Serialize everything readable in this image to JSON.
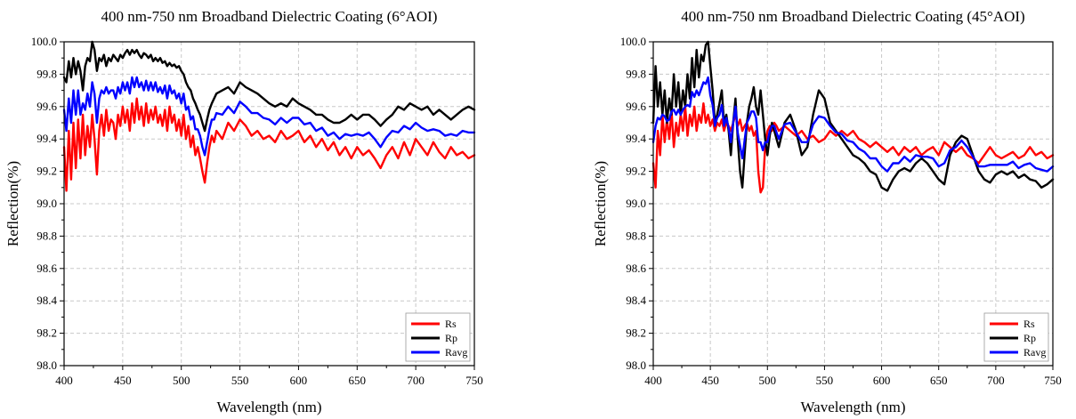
{
  "chart_data": [
    {
      "type": "line",
      "title": "400 nm-750 nm Broadband Dielectric Coating (6°AOI)",
      "xlabel": "Wavelength (nm)",
      "ylabel": "Reflection(%)",
      "xlim": [
        400,
        750
      ],
      "ylim": [
        98.0,
        100.0
      ],
      "xticks": [
        400,
        450,
        500,
        550,
        600,
        650,
        700,
        750
      ],
      "yticks": [
        "98.0",
        "98.2",
        "98.4",
        "98.6",
        "98.8",
        "99.0",
        "99.2",
        "99.4",
        "99.6",
        "99.8",
        "100.0"
      ],
      "grid": true,
      "legend_position": "bottom-right",
      "x": [
        400,
        402,
        404,
        406,
        408,
        410,
        412,
        414,
        416,
        418,
        420,
        422,
        424,
        426,
        428,
        430,
        432,
        434,
        436,
        438,
        440,
        442,
        444,
        446,
        448,
        450,
        452,
        454,
        456,
        458,
        460,
        462,
        464,
        466,
        468,
        470,
        472,
        474,
        476,
        478,
        480,
        482,
        484,
        486,
        488,
        490,
        492,
        494,
        496,
        498,
        500,
        502,
        504,
        506,
        508,
        510,
        512,
        514,
        516,
        518,
        520,
        522,
        524,
        526,
        528,
        530,
        535,
        540,
        545,
        550,
        555,
        560,
        565,
        570,
        575,
        580,
        585,
        590,
        595,
        600,
        605,
        610,
        615,
        620,
        625,
        630,
        635,
        640,
        645,
        650,
        655,
        660,
        665,
        670,
        675,
        680,
        685,
        690,
        695,
        700,
        705,
        710,
        715,
        720,
        725,
        730,
        735,
        740,
        745,
        750
      ],
      "series": [
        {
          "name": "Rs",
          "color": "#ff0000",
          "values": [
            99.35,
            99.08,
            99.45,
            99.15,
            99.5,
            99.22,
            99.52,
            99.28,
            99.55,
            99.3,
            99.48,
            99.35,
            99.55,
            99.4,
            99.18,
            99.45,
            99.55,
            99.42,
            99.58,
            99.45,
            99.52,
            99.5,
            99.4,
            99.55,
            99.48,
            99.6,
            99.5,
            99.58,
            99.45,
            99.62,
            99.5,
            99.65,
            99.52,
            99.6,
            99.48,
            99.62,
            99.5,
            99.58,
            99.52,
            99.6,
            99.5,
            99.55,
            99.48,
            99.58,
            99.45,
            99.6,
            99.5,
            99.55,
            99.45,
            99.52,
            99.42,
            99.55,
            99.4,
            99.48,
            99.35,
            99.42,
            99.3,
            99.35,
            99.28,
            99.2,
            99.13,
            99.25,
            99.35,
            99.42,
            99.38,
            99.45,
            99.4,
            99.5,
            99.45,
            99.52,
            99.48,
            99.42,
            99.45,
            99.4,
            99.42,
            99.38,
            99.45,
            99.4,
            99.42,
            99.45,
            99.38,
            99.42,
            99.35,
            99.4,
            99.33,
            99.38,
            99.3,
            99.35,
            99.28,
            99.35,
            99.3,
            99.33,
            99.28,
            99.22,
            99.3,
            99.35,
            99.28,
            99.38,
            99.3,
            99.4,
            99.35,
            99.3,
            99.38,
            99.32,
            99.28,
            99.35,
            99.3,
            99.32,
            99.28,
            99.3
          ]
        },
        {
          "name": "Rp",
          "color": "#000000",
          "values": [
            99.78,
            99.75,
            99.88,
            99.78,
            99.9,
            99.8,
            99.88,
            99.82,
            99.7,
            99.85,
            99.9,
            99.88,
            100.0,
            99.95,
            99.82,
            99.9,
            99.88,
            99.92,
            99.85,
            99.9,
            99.88,
            99.92,
            99.9,
            99.88,
            99.92,
            99.9,
            99.93,
            99.95,
            99.92,
            99.95,
            99.93,
            99.95,
            99.92,
            99.9,
            99.93,
            99.92,
            99.9,
            99.92,
            99.88,
            99.9,
            99.88,
            99.9,
            99.87,
            99.88,
            99.85,
            99.87,
            99.85,
            99.86,
            99.84,
            99.85,
            99.82,
            99.8,
            99.75,
            99.72,
            99.7,
            99.65,
            99.62,
            99.58,
            99.55,
            99.5,
            99.45,
            99.52,
            99.58,
            99.62,
            99.65,
            99.68,
            99.7,
            99.72,
            99.68,
            99.75,
            99.72,
            99.7,
            99.68,
            99.65,
            99.62,
            99.6,
            99.62,
            99.6,
            99.65,
            99.62,
            99.6,
            99.58,
            99.55,
            99.55,
            99.52,
            99.5,
            99.5,
            99.52,
            99.55,
            99.52,
            99.55,
            99.55,
            99.52,
            99.48,
            99.52,
            99.55,
            99.6,
            99.58,
            99.62,
            99.6,
            99.58,
            99.6,
            99.55,
            99.58,
            99.55,
            99.52,
            99.55,
            99.58,
            99.6,
            99.58
          ]
        },
        {
          "name": "Ravg",
          "color": "#0000ff",
          "values": [
            99.58,
            99.45,
            99.65,
            99.5,
            99.7,
            99.55,
            99.7,
            99.55,
            99.62,
            99.58,
            99.68,
            99.6,
            99.75,
            99.68,
            99.5,
            99.65,
            99.7,
            99.68,
            99.72,
            99.68,
            99.7,
            99.7,
            99.65,
            99.72,
            99.68,
            99.75,
            99.7,
            99.75,
            99.68,
            99.78,
            99.72,
            99.78,
            99.72,
            99.75,
            99.7,
            99.76,
            99.7,
            99.75,
            99.7,
            99.75,
            99.69,
            99.72,
            99.68,
            99.73,
            99.65,
            99.73,
            99.68,
            99.7,
            99.65,
            99.68,
            99.62,
            99.68,
            99.58,
            99.6,
            99.52,
            99.54,
            99.46,
            99.46,
            99.42,
            99.35,
            99.3,
            99.38,
            99.46,
            99.52,
            99.52,
            99.56,
            99.55,
            99.6,
            99.56,
            99.63,
            99.6,
            99.56,
            99.56,
            99.53,
            99.52,
            99.49,
            99.53,
            99.5,
            99.53,
            99.53,
            99.49,
            99.5,
            99.45,
            99.47,
            99.42,
            99.44,
            99.4,
            99.43,
            99.42,
            99.43,
            99.42,
            99.44,
            99.4,
            99.35,
            99.41,
            99.45,
            99.44,
            99.48,
            99.46,
            99.5,
            99.47,
            99.45,
            99.46,
            99.45,
            99.42,
            99.43,
            99.42,
            99.45,
            99.44,
            99.44
          ]
        }
      ]
    },
    {
      "type": "line",
      "title": "400 nm-750 nm Broadband Dielectric Coating (45°AOI)",
      "xlabel": "Wavelength (nm)",
      "ylabel": "Reflection(%)",
      "xlim": [
        400,
        750
      ],
      "ylim": [
        98.0,
        100.0
      ],
      "xticks": [
        400,
        450,
        500,
        550,
        600,
        650,
        700,
        750
      ],
      "yticks": [
        "98.0",
        "98.2",
        "98.4",
        "98.6",
        "98.8",
        "99.0",
        "99.2",
        "99.4",
        "99.6",
        "99.8",
        "100.0"
      ],
      "grid": true,
      "legend_position": "bottom-right",
      "x": [
        400,
        402,
        404,
        406,
        408,
        410,
        412,
        414,
        416,
        418,
        420,
        422,
        424,
        426,
        428,
        430,
        432,
        434,
        436,
        438,
        440,
        442,
        444,
        446,
        448,
        450,
        452,
        454,
        456,
        458,
        460,
        462,
        464,
        466,
        468,
        470,
        472,
        474,
        476,
        478,
        480,
        482,
        484,
        486,
        488,
        490,
        492,
        494,
        496,
        498,
        500,
        502,
        504,
        506,
        508,
        510,
        515,
        520,
        525,
        530,
        535,
        540,
        545,
        550,
        555,
        560,
        565,
        570,
        575,
        580,
        585,
        590,
        595,
        600,
        605,
        610,
        615,
        620,
        625,
        630,
        635,
        640,
        645,
        650,
        655,
        660,
        665,
        670,
        675,
        680,
        685,
        690,
        695,
        700,
        705,
        710,
        715,
        720,
        725,
        730,
        735,
        740,
        745,
        750
      ],
      "series": [
        {
          "name": "Rs",
          "color": "#ff0000",
          "values": [
            99.25,
            99.1,
            99.45,
            99.3,
            99.55,
            99.38,
            99.52,
            99.4,
            99.58,
            99.35,
            99.5,
            99.42,
            99.55,
            99.45,
            99.6,
            99.42,
            99.55,
            99.48,
            99.6,
            99.45,
            99.55,
            99.5,
            99.62,
            99.5,
            99.55,
            99.48,
            99.52,
            99.45,
            99.5,
            99.48,
            99.52,
            99.45,
            99.5,
            99.48,
            99.45,
            99.5,
            99.55,
            99.48,
            99.52,
            99.45,
            99.48,
            99.5,
            99.45,
            99.48,
            99.42,
            99.45,
            99.2,
            99.07,
            99.1,
            99.35,
            99.45,
            99.48,
            99.45,
            99.5,
            99.48,
            99.45,
            99.48,
            99.45,
            99.42,
            99.45,
            99.4,
            99.42,
            99.38,
            99.4,
            99.45,
            99.42,
            99.45,
            99.42,
            99.45,
            99.4,
            99.38,
            99.35,
            99.38,
            99.35,
            99.32,
            99.35,
            99.3,
            99.35,
            99.32,
            99.35,
            99.3,
            99.33,
            99.35,
            99.3,
            99.38,
            99.35,
            99.32,
            99.35,
            99.3,
            99.28,
            99.25,
            99.3,
            99.35,
            99.3,
            99.28,
            99.3,
            99.32,
            99.28,
            99.3,
            99.35,
            99.3,
            99.32,
            99.28,
            99.3
          ]
        },
        {
          "name": "Rp",
          "color": "#000000",
          "values": [
            99.5,
            99.85,
            99.6,
            99.75,
            99.55,
            99.7,
            99.5,
            99.65,
            99.55,
            99.8,
            99.6,
            99.75,
            99.55,
            99.7,
            99.6,
            99.8,
            99.65,
            99.9,
            99.72,
            99.95,
            99.78,
            99.92,
            99.88,
            99.98,
            100.0,
            99.85,
            99.7,
            99.5,
            99.55,
            99.62,
            99.7,
            99.5,
            99.55,
            99.45,
            99.3,
            99.5,
            99.65,
            99.4,
            99.2,
            99.1,
            99.3,
            99.5,
            99.6,
            99.65,
            99.72,
            99.6,
            99.55,
            99.7,
            99.55,
            99.4,
            99.3,
            99.42,
            99.5,
            99.45,
            99.4,
            99.35,
            99.5,
            99.55,
            99.45,
            99.3,
            99.35,
            99.55,
            99.7,
            99.65,
            99.5,
            99.45,
            99.4,
            99.35,
            99.3,
            99.28,
            99.25,
            99.2,
            99.18,
            99.1,
            99.08,
            99.15,
            99.2,
            99.22,
            99.2,
            99.25,
            99.28,
            99.25,
            99.2,
            99.15,
            99.12,
            99.3,
            99.38,
            99.42,
            99.4,
            99.3,
            99.2,
            99.15,
            99.13,
            99.18,
            99.2,
            99.18,
            99.2,
            99.16,
            99.18,
            99.15,
            99.14,
            99.1,
            99.12,
            99.15
          ]
        },
        {
          "name": "Ravg",
          "color": "#0000ff",
          "values": [
            99.38,
            99.48,
            99.53,
            99.52,
            99.55,
            99.54,
            99.51,
            99.52,
            99.57,
            99.58,
            99.55,
            99.58,
            99.55,
            99.58,
            99.6,
            99.61,
            99.6,
            99.69,
            99.66,
            99.7,
            99.67,
            99.71,
            99.75,
            99.74,
            99.78,
            99.67,
            99.61,
            99.48,
            99.53,
            99.55,
            99.61,
            99.48,
            99.53,
            99.47,
            99.38,
            99.5,
            99.6,
            99.44,
            99.36,
            99.28,
            99.39,
            99.5,
            99.53,
            99.57,
            99.57,
            99.53,
            99.38,
            99.38,
            99.33,
            99.38,
            99.38,
            99.45,
            99.48,
            99.48,
            99.44,
            99.4,
            99.49,
            99.5,
            99.44,
            99.38,
            99.38,
            99.49,
            99.54,
            99.53,
            99.48,
            99.44,
            99.43,
            99.39,
            99.38,
            99.34,
            99.32,
            99.28,
            99.28,
            99.23,
            99.2,
            99.25,
            99.25,
            99.29,
            99.26,
            99.3,
            99.29,
            99.29,
            99.28,
            99.23,
            99.25,
            99.33,
            99.35,
            99.39,
            99.35,
            99.29,
            99.23,
            99.23,
            99.24,
            99.24,
            99.24,
            99.24,
            99.26,
            99.22,
            99.24,
            99.25,
            99.22,
            99.21,
            99.2,
            99.23
          ]
        }
      ]
    }
  ]
}
